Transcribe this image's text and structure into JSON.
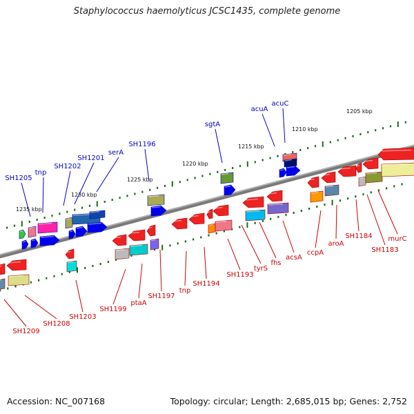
{
  "title": "Staphylococcus haemolyticus JCSC1435, complete genome",
  "accession": "Accession: NC_007168",
  "summary": "Topology: circular; Length: 2,685,015 bp; Genes: 2,752",
  "colors": {
    "backbone": "#808080",
    "tick": "#1a6b1a",
    "forward_label": "#0000cc",
    "reverse_label": "#cc0000",
    "scale_text": "#111111"
  },
  "scale_labels": [
    {
      "label": "1205 kbp",
      "kbp": 1205
    },
    {
      "label": "1210 kbp",
      "kbp": 1210
    },
    {
      "label": "1215 kbp",
      "kbp": 1215
    },
    {
      "label": "1220 kbp",
      "kbp": 1220
    },
    {
      "label": "1225 kbp",
      "kbp": 1225
    },
    {
      "label": "1230 kbp",
      "kbp": 1230
    },
    {
      "label": "1235 kbp",
      "kbp": 1235
    }
  ],
  "forward_genes": [
    "acuC",
    "acuA",
    "sgtA",
    "SH1196",
    "serA",
    "SH1201",
    "SH1202",
    "tnp",
    "SH1205"
  ],
  "reverse_genes": [
    "murC",
    "SH1183",
    "SH1184",
    "aroA",
    "ccpA",
    "acsA",
    "fhs",
    "tyrS",
    "SH1193",
    "SH1194",
    "tnp",
    "SH1197",
    "ptaA",
    "SH1199",
    "SH1203",
    "SH1208",
    "SH1209"
  ]
}
